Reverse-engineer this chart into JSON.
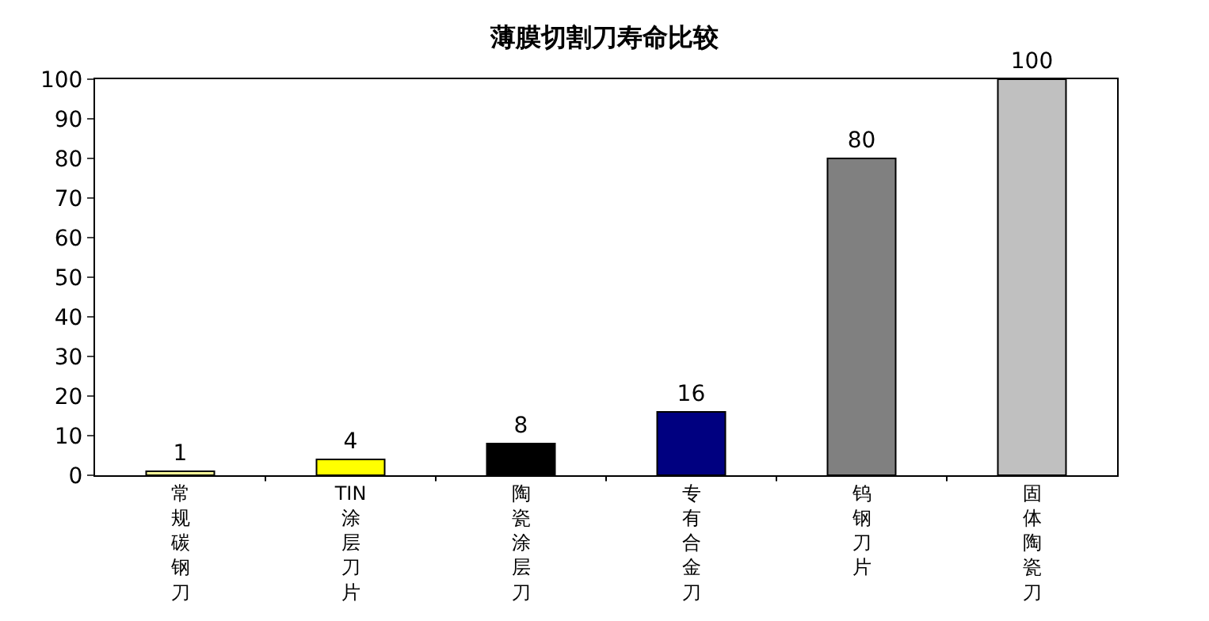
{
  "chart_data": {
    "type": "bar",
    "title": "薄膜切割刀寿命比较",
    "categories": [
      "常规碳钢刀",
      "TIN涂层刀片",
      "陶瓷涂层刀",
      "专有合金刀",
      "钨钢刀片",
      "固体陶瓷刀"
    ],
    "values": [
      1,
      4,
      8,
      16,
      80,
      100
    ],
    "colors": [
      "#ffff99",
      "#ffff00",
      "#000000",
      "#000080",
      "#808080",
      "#c0c0c0"
    ],
    "ylim": [
      0,
      100
    ],
    "yticks": [
      0,
      10,
      20,
      30,
      40,
      50,
      60,
      70,
      80,
      90,
      100
    ],
    "grid": false,
    "data_labels": true
  }
}
